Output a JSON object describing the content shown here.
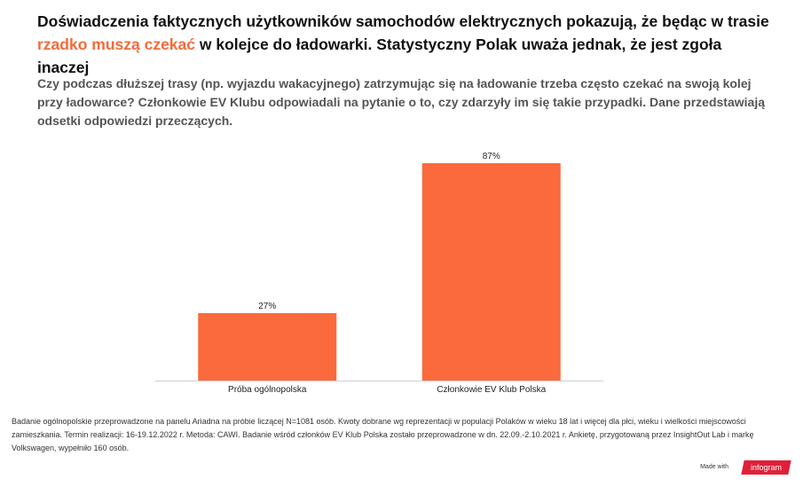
{
  "header": {
    "title_part1": "Doświadczenia faktycznych użytkowników samochodów elektrycznych pokazują, że będąc w trasie ",
    "title_highlight": "rzadko muszą czekać",
    "title_part2": " w kolejce do ładowarki. Statystyczny Polak uważa jednak, że jest zgoła inaczej",
    "subtitle": "Czy podczas dłuższej trasy (np. wyjazdu wakacyjnego) zatrzymując się na ładowanie trzeba często czekać na swoją kolej przy ładowarce? Członkowie EV Klubu odpowiadali na pytanie o to, czy zdarzyły im się takie przypadki. Dane przedstawiają odsetki odpowiedzi przeczących."
  },
  "colors": {
    "highlight": "#f36b3b",
    "bar": "#fa6a3c",
    "brand": "#e0203a"
  },
  "chart_data": {
    "type": "bar",
    "title": "",
    "xlabel": "",
    "ylabel": "",
    "categories": [
      "Próba ogólnopolska",
      "Członkowie EV Klub Polska"
    ],
    "values": [
      27,
      87
    ],
    "data_labels": [
      "27%",
      "87%"
    ],
    "ylim": [
      0,
      100
    ],
    "grid": false,
    "legend": "none"
  },
  "footer": {
    "note": "Badanie ogólnopolskie przeprowadzone na panelu Ariadna na próbie liczącej N=1081 osób. Kwoty dobrane wg reprezentacji w populacji Polaków w wieku 18 lat i więcej dla płci, wieku i wielkości miejscowości zamieszkania. Termin realizacji: 16-19.12.2022 r. Metoda: CAWI. Badanie wśród członków EV Klub Polska zostało przeprowadzone w dn. 22.09.-2.10.2021 r. Ankietę, przygotowaną przez InsightOut Lab i markę Volkswagen, wypełniło 160 osób.",
    "made_with": "Made with",
    "brand": "infogram"
  }
}
